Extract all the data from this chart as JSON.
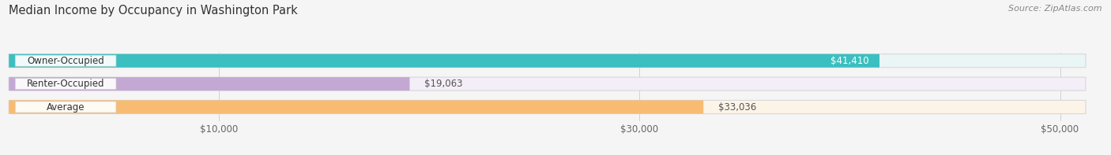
{
  "title": "Median Income by Occupancy in Washington Park",
  "source_text": "Source: ZipAtlas.com",
  "categories": [
    "Owner-Occupied",
    "Renter-Occupied",
    "Average"
  ],
  "values": [
    41410,
    19063,
    33036
  ],
  "bar_colors": [
    "#3bbfc0",
    "#c4a8d4",
    "#f7bc72"
  ],
  "bar_bg_colors": [
    "#eaf6f6",
    "#f3eef7",
    "#fdf4e8"
  ],
  "value_labels": [
    "$41,410",
    "$19,063",
    "$33,036"
  ],
  "value_label_inside": [
    true,
    false,
    false
  ],
  "x_ticks": [
    10000,
    30000,
    50000
  ],
  "x_tick_labels": [
    "$10,000",
    "$30,000",
    "$50,000"
  ],
  "xlim_max": 52000,
  "bg_color": "#f5f5f5",
  "bar_height": 0.58,
  "title_fontsize": 10.5,
  "label_fontsize": 8.5,
  "source_fontsize": 8,
  "cat_label_fontsize": 8.5
}
